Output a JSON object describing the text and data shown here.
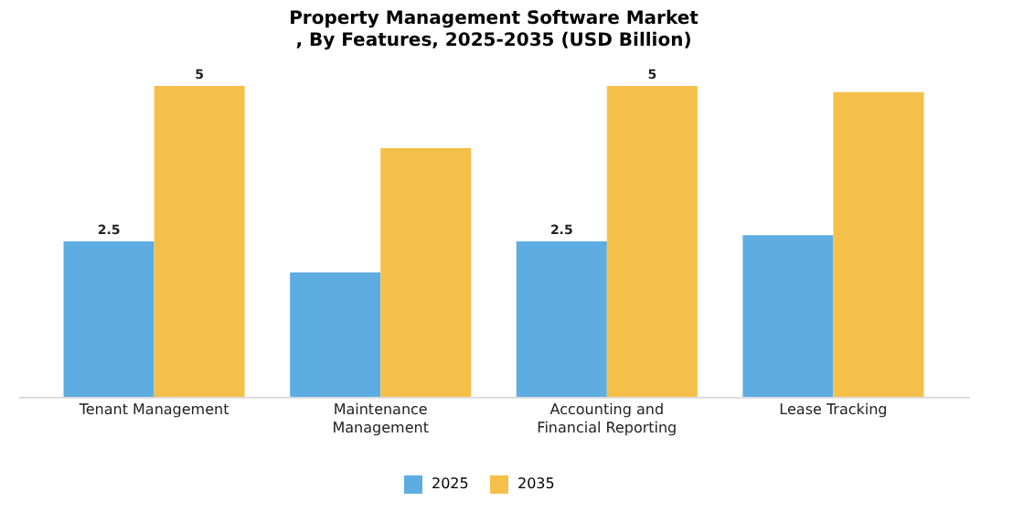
{
  "chart_data": {
    "type": "bar",
    "title": "Property Management Software Market\n, By Features, 2025-2035 (USD Billion)",
    "categories": [
      "Tenant Management",
      "Maintenance\nManagement",
      "Accounting and\nFinancial Reporting",
      "Lease Tracking"
    ],
    "series": [
      {
        "name": "2025",
        "color": "#5dade2",
        "values": [
          2.5,
          2.0,
          2.5,
          2.6
        ],
        "value_labels": [
          "2.5",
          null,
          "2.5",
          null
        ]
      },
      {
        "name": "2035",
        "color": "#f5c04a",
        "values": [
          5,
          4.0,
          5,
          4.9
        ],
        "value_labels": [
          "5",
          null,
          "5",
          null
        ]
      }
    ],
    "legend": "bottom"
  }
}
